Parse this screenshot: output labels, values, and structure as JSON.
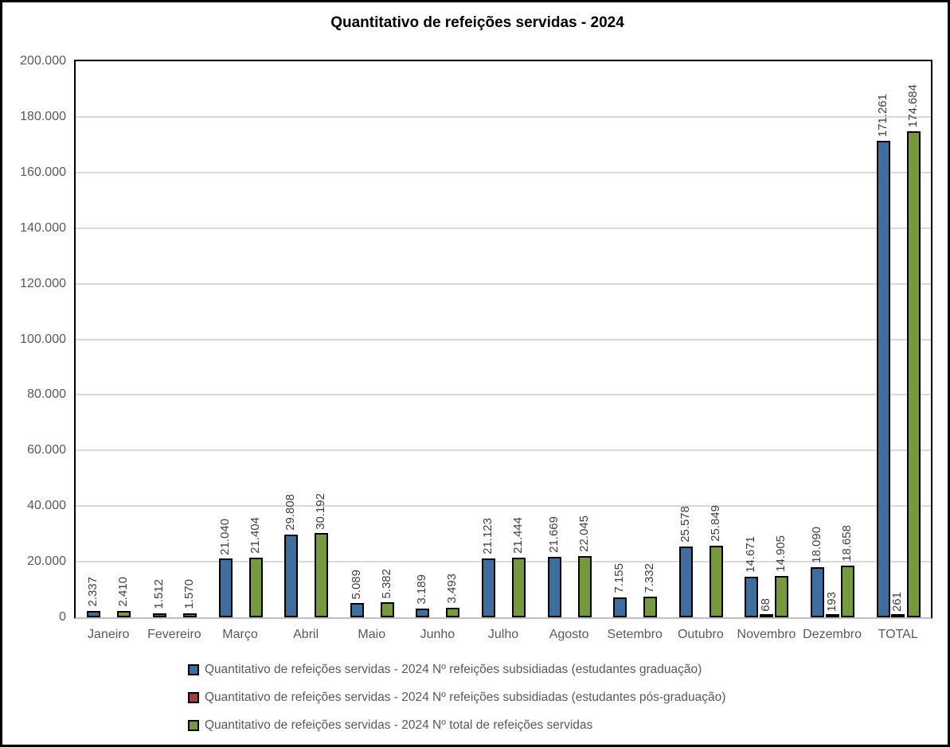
{
  "title": "Quantitativo de refeições servidas - 2024",
  "chart_data": {
    "type": "bar",
    "title": "Quantitativo de refeições servidas - 2024",
    "xlabel": "",
    "ylabel": "",
    "ylim": [
      0,
      200000
    ],
    "ytick_step": 20000,
    "ytick_values": [
      0,
      20000,
      40000,
      60000,
      80000,
      100000,
      120000,
      140000,
      160000,
      180000,
      200000
    ],
    "ytick_labels": [
      "0",
      "20.000",
      "40.000",
      "60.000",
      "80.000",
      "100.000",
      "120.000",
      "140.000",
      "160.000",
      "180.000",
      "200.000"
    ],
    "grid": true,
    "legend_position": "bottom-left",
    "categories": [
      "Janeiro",
      "Fevereiro",
      "Março",
      "Abril",
      "Maio",
      "Junho",
      "Julho",
      "Agosto",
      "Setembro",
      "Outubro",
      "Novembro",
      "Dezembro",
      "TOTAL"
    ],
    "series": [
      {
        "key": "graduacao",
        "name": "Quantitativo de refeições servidas - 2024 Nº refeições subsidiadas (estudantes graduação)",
        "color": "#3E6DA0",
        "values": [
          2337,
          1512,
          21040,
          29808,
          5089,
          3189,
          21123,
          21669,
          7155,
          25578,
          14671,
          18090,
          171261
        ],
        "labels": [
          "2.337",
          "1.512",
          "21.040",
          "29.808",
          "5.089",
          "3.189",
          "21.123",
          "21.669",
          "7.155",
          "25.578",
          "14.671",
          "18.090",
          "171.261"
        ]
      },
      {
        "key": "pos-graduacao",
        "name": "Quantitativo de refeições servidas - 2024 Nº refeições subsidiadas (estudantes pós-graduação)",
        "color": "#A13E3B",
        "values": [
          null,
          null,
          null,
          null,
          null,
          null,
          null,
          null,
          null,
          null,
          68,
          193,
          261
        ],
        "labels": [
          null,
          null,
          null,
          null,
          null,
          null,
          null,
          null,
          null,
          null,
          "68",
          "193",
          "261"
        ]
      },
      {
        "key": "total",
        "name": "Quantitativo de refeições servidas - 2024 Nº total de refeições servidas",
        "color": "#76993E",
        "values": [
          2410,
          1570,
          21404,
          30192,
          5382,
          3493,
          21444,
          22045,
          7332,
          25849,
          14905,
          18658,
          174684
        ],
        "labels": [
          "2.410",
          "1.570",
          "21.404",
          "30.192",
          "5.382",
          "3.493",
          "21.444",
          "22.045",
          "7.332",
          "25.849",
          "14.905",
          "18.658",
          "174.684"
        ]
      }
    ]
  },
  "colors": {
    "bar_border": "#000000",
    "gridline": "#D9D9D9",
    "plot_border": "#000000",
    "axis_line": "#BFBFBF",
    "axis_text": "#595959",
    "data_label_text": "#3F3F3F",
    "title_text": "#000000",
    "background": "#FFFFFF"
  }
}
